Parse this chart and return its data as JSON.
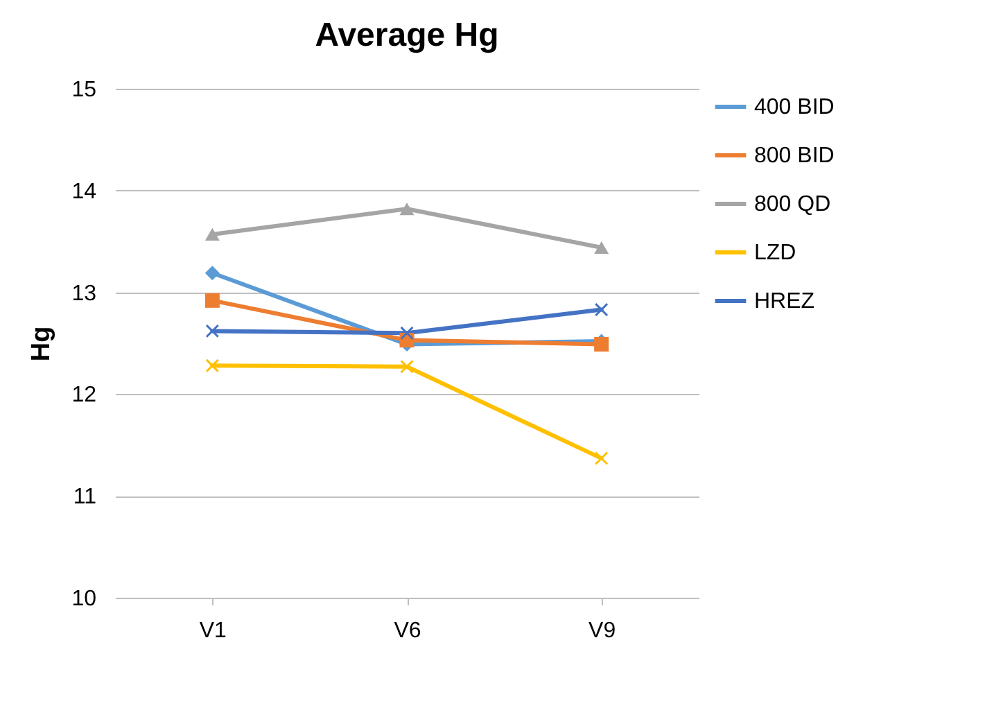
{
  "chart_data": {
    "type": "line",
    "title": "Average Hg",
    "ylabel": "Hg",
    "categories": [
      "V1",
      "V6",
      "V9"
    ],
    "series": [
      {
        "name": "400 BID",
        "color": "#5b9bd5",
        "marker": "diamond",
        "values": [
          13.19,
          12.49,
          12.52
        ]
      },
      {
        "name": "800 BID",
        "color": "#ed7d31",
        "marker": "square",
        "values": [
          12.92,
          12.53,
          12.49
        ]
      },
      {
        "name": "800 QD",
        "color": "#a5a5a5",
        "marker": "triangle",
        "values": [
          13.57,
          13.82,
          13.44
        ]
      },
      {
        "name": "LZD",
        "color": "#ffc000",
        "marker": "cross",
        "values": [
          12.28,
          12.27,
          11.37
        ]
      },
      {
        "name": "HREZ",
        "color": "#4472c4",
        "marker": "cross",
        "values": [
          12.62,
          12.6,
          12.83
        ]
      }
    ],
    "ylim": [
      10,
      15
    ],
    "yticks": [
      10,
      11,
      12,
      13,
      14,
      15
    ],
    "grid": "y",
    "legend": "right"
  }
}
